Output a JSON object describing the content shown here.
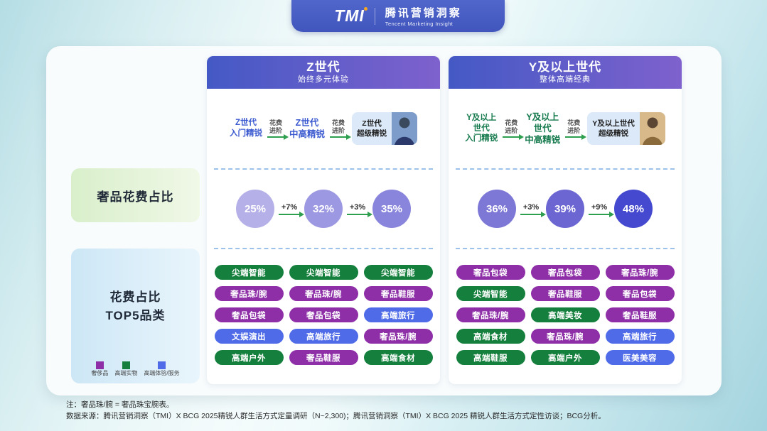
{
  "logo": {
    "tmi": "TMI",
    "name_cn": "腾讯营销洞察",
    "name_en": "Tencent Marketing Insight"
  },
  "sidebar": {
    "spend_label": "奢品花费占比",
    "top5_line1": "花费占比",
    "top5_line2": "TOP5品类",
    "legend": [
      {
        "label": "奢侈品",
        "color": "#8e2fa8"
      },
      {
        "label": "高端实物",
        "color": "#15803d"
      },
      {
        "label": "高端体验/服务",
        "color": "#4f6be8"
      }
    ]
  },
  "palette": {
    "lux": "#8e2fa8",
    "phy": "#15803d",
    "ser": "#4f6be8"
  },
  "columns": [
    {
      "header_title": "Z世代",
      "header_subtitle": "始终多元体验",
      "flow": {
        "stage1": [
          "Z世代",
          "入门精锐"
        ],
        "step1": [
          "花费",
          "进阶"
        ],
        "stage2": [
          "Z世代",
          "中高精锐"
        ],
        "step2": [
          "花费",
          "进阶"
        ],
        "stage3": [
          "Z世代",
          "超级精锐"
        ]
      },
      "circles": {
        "values": [
          "25%",
          "32%",
          "35%"
        ],
        "colors": [
          "#b5b1e8",
          "#9d98e2",
          "#8a85dc"
        ],
        "deltas": [
          "+7%",
          "+3%"
        ]
      },
      "pills": [
        [
          {
            "label": "尖端智能",
            "cat": "phy"
          },
          {
            "label": "尖端智能",
            "cat": "phy"
          },
          {
            "label": "尖端智能",
            "cat": "phy"
          }
        ],
        [
          {
            "label": "奢品珠/腕",
            "cat": "lux"
          },
          {
            "label": "奢品珠/腕",
            "cat": "lux"
          },
          {
            "label": "奢品鞋服",
            "cat": "lux"
          }
        ],
        [
          {
            "label": "奢品包袋",
            "cat": "lux"
          },
          {
            "label": "奢品包袋",
            "cat": "lux"
          },
          {
            "label": "高端旅行",
            "cat": "ser"
          }
        ],
        [
          {
            "label": "文娱演出",
            "cat": "ser"
          },
          {
            "label": "高端旅行",
            "cat": "ser"
          },
          {
            "label": "奢品珠/腕",
            "cat": "lux"
          }
        ],
        [
          {
            "label": "高端户外",
            "cat": "phy"
          },
          {
            "label": "奢品鞋服",
            "cat": "lux"
          },
          {
            "label": "高端食材",
            "cat": "phy"
          }
        ]
      ]
    },
    {
      "header_title": "Y及以上世代",
      "header_subtitle": "整体高端经典",
      "flow": {
        "stage1": [
          "Y及以上",
          "世代",
          "入门精锐"
        ],
        "step1": [
          "花费",
          "进阶"
        ],
        "stage2": [
          "Y及以上",
          "世代",
          "中高精锐"
        ],
        "step2": [
          "花费",
          "进阶"
        ],
        "stage3": [
          "Y及以上世代",
          "超级精锐"
        ]
      },
      "circles": {
        "values": [
          "36%",
          "39%",
          "48%"
        ],
        "colors": [
          "#7d78d6",
          "#6b66d2",
          "#4549cf"
        ],
        "deltas": [
          "+3%",
          "+9%"
        ]
      },
      "pills": [
        [
          {
            "label": "奢品包袋",
            "cat": "lux"
          },
          {
            "label": "奢品包袋",
            "cat": "lux"
          },
          {
            "label": "奢品珠/腕",
            "cat": "lux"
          }
        ],
        [
          {
            "label": "尖端智能",
            "cat": "phy"
          },
          {
            "label": "奢品鞋服",
            "cat": "lux"
          },
          {
            "label": "奢品包袋",
            "cat": "lux"
          }
        ],
        [
          {
            "label": "奢品珠/腕",
            "cat": "lux"
          },
          {
            "label": "高端美妆",
            "cat": "phy"
          },
          {
            "label": "奢品鞋服",
            "cat": "lux"
          }
        ],
        [
          {
            "label": "高端食材",
            "cat": "phy"
          },
          {
            "label": "奢品珠/腕",
            "cat": "lux"
          },
          {
            "label": "高端旅行",
            "cat": "ser"
          }
        ],
        [
          {
            "label": "高端鞋服",
            "cat": "phy"
          },
          {
            "label": "高端户外",
            "cat": "phy"
          },
          {
            "label": "医美美容",
            "cat": "ser"
          }
        ]
      ]
    }
  ],
  "notes": {
    "line1": "注：奢品珠/腕 = 奢品珠宝腕表。",
    "line2": "数据来源：腾讯营销洞察（TMI）X BCG 2025精锐人群生活方式定量调研（N~2,300)；腾讯营销洞察（TMI）X BCG 2025 精锐人群生活方式定性访谈；BCG分析。"
  },
  "chart_data": [
    {
      "type": "bar",
      "title": "奢品花费占比 — Z世代",
      "categories": [
        "Z世代入门精锐",
        "Z世代中高精锐",
        "Z世代超级精锐"
      ],
      "values": [
        25,
        32,
        35
      ],
      "deltas": [
        "+7%",
        "+3%"
      ],
      "unit": "%"
    },
    {
      "type": "bar",
      "title": "奢品花费占比 — Y及以上世代",
      "categories": [
        "Y及以上世代入门精锐",
        "Y及以上世代中高精锐",
        "Y及以上世代超级精锐"
      ],
      "values": [
        36,
        39,
        48
      ],
      "deltas": [
        "+3%",
        "+9%"
      ],
      "unit": "%"
    },
    {
      "type": "table",
      "title": "花费占比TOP5品类 — Z世代",
      "columns": [
        "Z世代入门精锐",
        "Z世代中高精锐",
        "Z世代超级精锐"
      ],
      "rows": [
        [
          "尖端智能",
          "尖端智能",
          "尖端智能"
        ],
        [
          "奢品珠/腕",
          "奢品珠/腕",
          "奢品鞋服"
        ],
        [
          "奢品包袋",
          "奢品包袋",
          "高端旅行"
        ],
        [
          "文娱演出",
          "高端旅行",
          "奢品珠/腕"
        ],
        [
          "高端户外",
          "奢品鞋服",
          "高端食材"
        ]
      ]
    },
    {
      "type": "table",
      "title": "花费占比TOP5品类 — Y及以上世代",
      "columns": [
        "Y及以上世代入门精锐",
        "Y及以上世代中高精锐",
        "Y及以上世代超级精锐"
      ],
      "rows": [
        [
          "奢品包袋",
          "奢品包袋",
          "奢品珠/腕"
        ],
        [
          "尖端智能",
          "奢品鞋服",
          "奢品包袋"
        ],
        [
          "奢品珠/腕",
          "高端美妆",
          "奢品鞋服"
        ],
        [
          "高端食材",
          "奢品珠/腕",
          "高端旅行"
        ],
        [
          "高端鞋服",
          "高端户外",
          "医美美容"
        ]
      ]
    }
  ]
}
